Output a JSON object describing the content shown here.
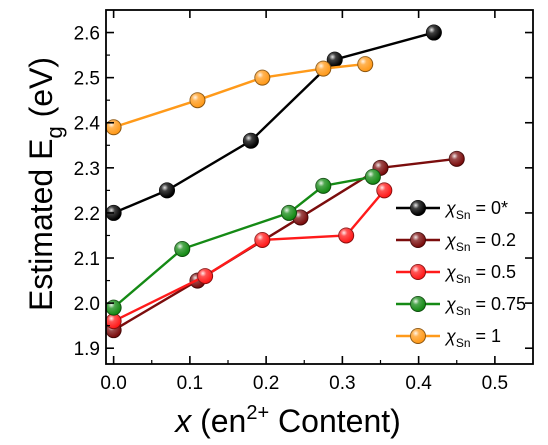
{
  "chart_data": {
    "type": "line",
    "xlabel": {
      "var": "x",
      "main": " (en",
      "sup": "2+",
      "rest": " Content)"
    },
    "ylabel": {
      "main": "Estimated E",
      "sub": "g",
      "rest": " (eV)"
    },
    "xlim": [
      -0.01,
      0.55
    ],
    "ylim": [
      1.865,
      2.65
    ],
    "x_ticks": [
      0.0,
      0.1,
      0.2,
      0.3,
      0.4,
      0.5
    ],
    "x_tick_labels": [
      "0.0",
      "0.1",
      "0.2",
      "0.3",
      "0.4",
      "0.5"
    ],
    "y_ticks": [
      1.9,
      2.0,
      2.1,
      2.2,
      2.3,
      2.4,
      2.5,
      2.6
    ],
    "y_tick_labels": [
      "1.9",
      "2.0",
      "2.1",
      "2.2",
      "2.3",
      "2.4",
      "2.5",
      "2.6"
    ],
    "legend_position": "right",
    "series": [
      {
        "name": "χSn = 0*",
        "sym": "χ",
        "sub": "Sn",
        "rest": " = 0*",
        "color": "#000000",
        "points": [
          [
            0.0,
            2.2
          ],
          [
            0.07,
            2.25
          ],
          [
            0.18,
            2.36
          ],
          [
            0.29,
            2.54
          ],
          [
            0.42,
            2.6
          ]
        ]
      },
      {
        "name": "χSn = 0.2",
        "sym": "χ",
        "sub": "Sn",
        "rest": " = 0.2",
        "color": "#7b0d0d",
        "points": [
          [
            0.0,
            1.94
          ],
          [
            0.11,
            2.05
          ],
          [
            0.245,
            2.19
          ],
          [
            0.35,
            2.3
          ],
          [
            0.45,
            2.32
          ]
        ]
      },
      {
        "name": "χSn = 0.5",
        "sym": "χ",
        "sub": "Sn",
        "rest": " = 0.5",
        "color": "#ff1a1a",
        "points": [
          [
            0.0,
            1.96
          ],
          [
            0.12,
            2.06
          ],
          [
            0.195,
            2.14
          ],
          [
            0.305,
            2.15
          ],
          [
            0.355,
            2.25
          ]
        ]
      },
      {
        "name": "χSn = 0.75",
        "sym": "χ",
        "sub": "Sn",
        "rest": " = 0.75",
        "color": "#158a15",
        "points": [
          [
            0.0,
            1.99
          ],
          [
            0.09,
            2.12
          ],
          [
            0.23,
            2.2
          ],
          [
            0.275,
            2.26
          ],
          [
            0.34,
            2.28
          ]
        ]
      },
      {
        "name": "χSn = 1",
        "sym": "χ",
        "sub": "Sn",
        "rest": " = 1",
        "color": "#ff9a1a",
        "points": [
          [
            0.0,
            2.39
          ],
          [
            0.11,
            2.45
          ],
          [
            0.195,
            2.5
          ],
          [
            0.275,
            2.52
          ],
          [
            0.33,
            2.53
          ]
        ]
      }
    ]
  }
}
